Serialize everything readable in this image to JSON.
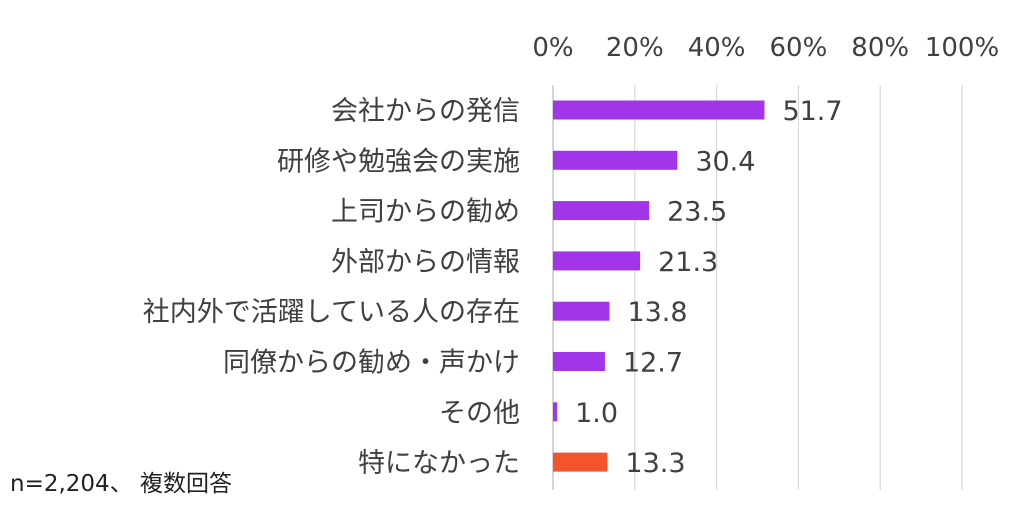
{
  "chart_data": {
    "type": "bar",
    "orientation": "horizontal",
    "categories": [
      "会社からの発信",
      "研修や勉強会の実施",
      "上司からの勧め",
      "外部からの情報",
      "社内外で活躍している人の存在",
      "同僚からの勧め・声かけ",
      "その他",
      "特になかった"
    ],
    "values": [
      51.7,
      30.4,
      23.5,
      21.3,
      13.8,
      12.7,
      1.0,
      13.3
    ],
    "value_labels": [
      "51.7",
      "30.4",
      "23.5",
      "21.3",
      "13.8",
      "12.7",
      "1.0",
      "13.3"
    ],
    "bar_colors": [
      "#a235ea",
      "#a235ea",
      "#a235ea",
      "#a235ea",
      "#a235ea",
      "#a235ea",
      "#a235ea",
      "#f2552c"
    ],
    "xlim": [
      0,
      100
    ],
    "x_ticks": [
      0,
      20,
      40,
      60,
      80,
      100
    ],
    "x_tick_labels": [
      "0%",
      "20%",
      "40%",
      "60%",
      "80%",
      "100%"
    ],
    "axis_position": "top",
    "grid": true,
    "legend": "none"
  },
  "footnote": "n=2,204、 複数回答"
}
